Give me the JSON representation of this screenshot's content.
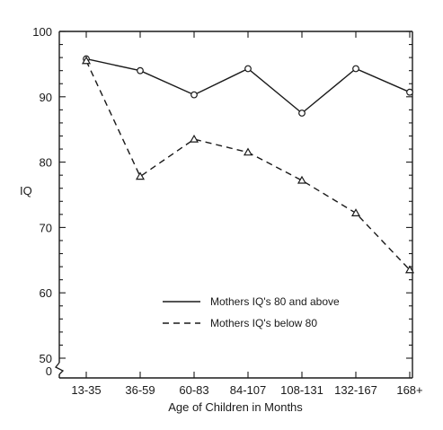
{
  "chart_data": {
    "type": "line",
    "title": "",
    "xlabel": "Age of Children in Months",
    "ylabel": "IQ",
    "categories": [
      "13-35",
      "36-59",
      "60-83",
      "84-107",
      "108-131",
      "132-167",
      "168+"
    ],
    "y_ticks": [
      "100",
      "90",
      "80",
      "70",
      "60",
      "50",
      "0"
    ],
    "y_axis_break": true,
    "ylim": [
      50,
      100
    ],
    "grid": false,
    "legend_position": "lower-right",
    "series": [
      {
        "name": "Mothers IQ's 80 and above",
        "marker": "circle",
        "line_style": "solid",
        "values": [
          95.8,
          94.0,
          90.3,
          94.3,
          87.5,
          94.3,
          90.7
        ]
      },
      {
        "name": "Mothers IQ's below 80",
        "marker": "triangle",
        "line_style": "dashed",
        "values": [
          95.5,
          77.8,
          83.5,
          81.5,
          77.2,
          72.2,
          63.5
        ]
      }
    ]
  }
}
